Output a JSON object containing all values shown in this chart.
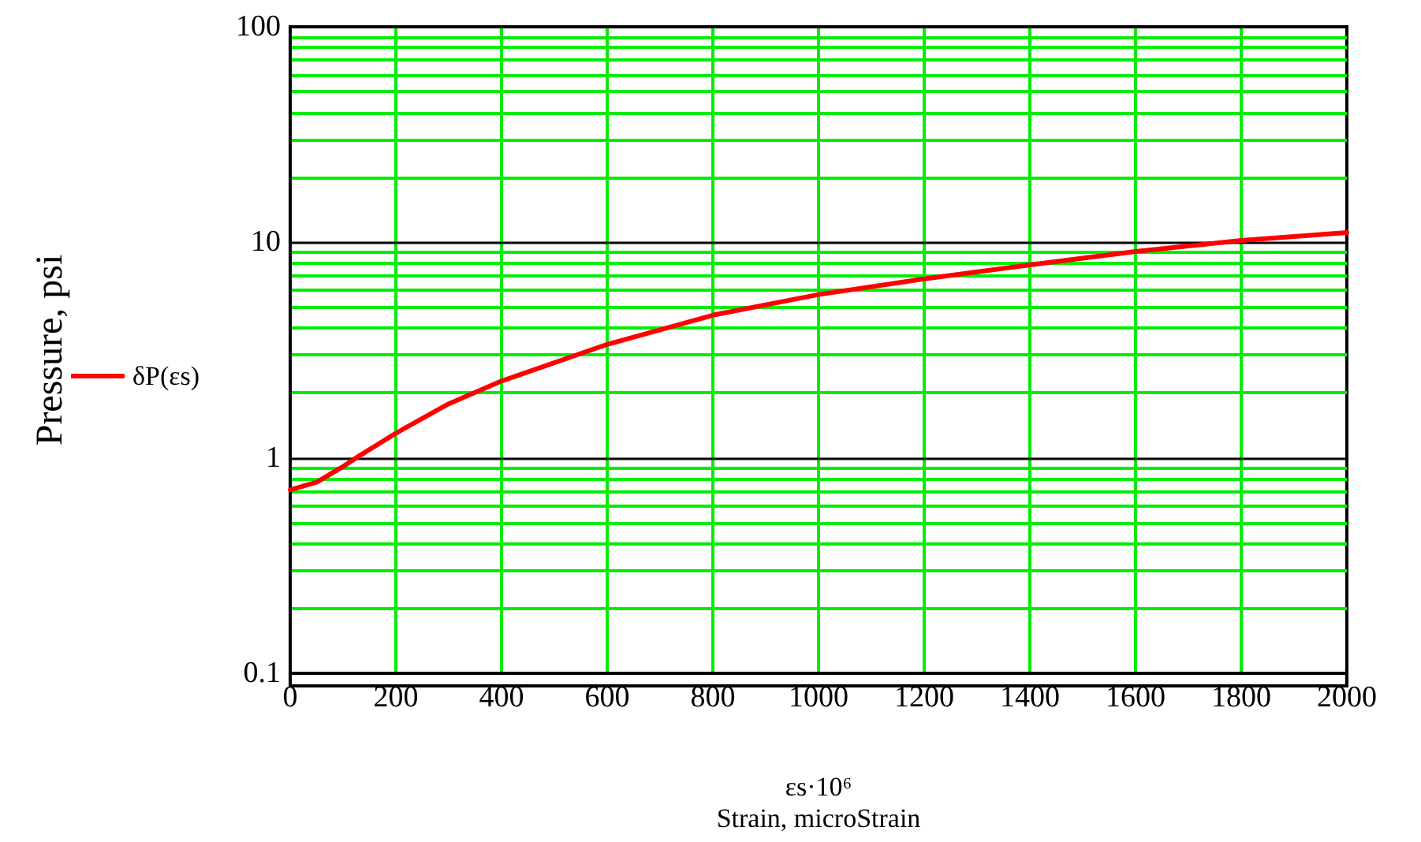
{
  "chart_data": {
    "type": "line",
    "xlabel": "εs·10⁶\nStrain, microStrain",
    "ylabel": "Pressure, psi",
    "x": [
      0,
      50,
      100,
      125,
      200,
      300,
      400,
      600,
      800,
      1000,
      1200,
      1400,
      1600,
      1800,
      2000
    ],
    "series": [
      {
        "name": "δP(εs)",
        "color": "#ff0000",
        "values": [
          0.71,
          0.77,
          0.91,
          1.0,
          1.3,
          1.78,
          2.27,
          3.36,
          4.59,
          5.72,
          6.76,
          7.86,
          9.07,
          10.2,
          11.1
        ]
      }
    ],
    "xlim": [
      0,
      2000
    ],
    "xticks": [
      0,
      200,
      400,
      600,
      800,
      1000,
      1200,
      1400,
      1600,
      1800,
      2000
    ],
    "ylim": [
      0.1,
      100
    ],
    "yticks": [
      0.1,
      1,
      10,
      100
    ],
    "log": "y",
    "grid": true,
    "legend": "left",
    "marker": "none",
    "line_style": "solid"
  }
}
